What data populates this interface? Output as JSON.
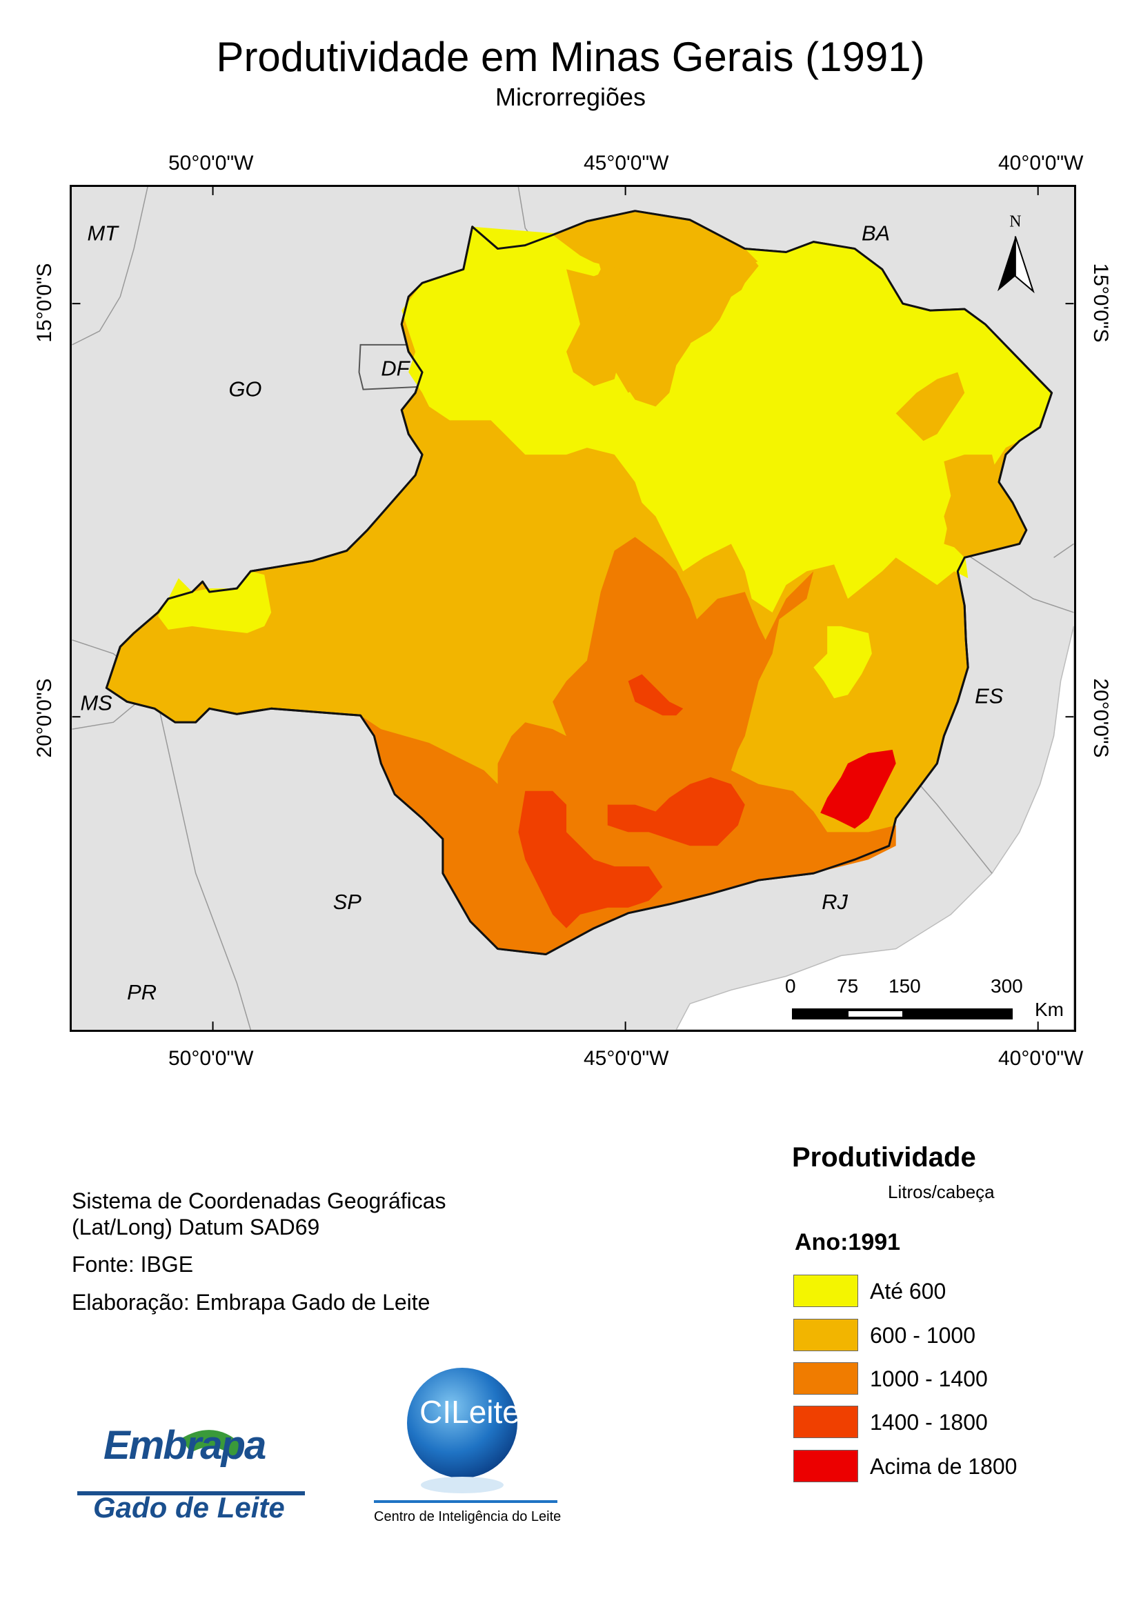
{
  "header": {
    "title": "Produtividade em Minas Gerais (1991)",
    "subtitle": "Microrregiões"
  },
  "graticule": {
    "lon_labels": [
      "50°0'0\"W",
      "45°0'0\"W",
      "40°0'0\"W"
    ],
    "lat_labels": [
      "15°0'0\"S",
      "20°0'0\"S"
    ]
  },
  "map": {
    "states": [
      "MT",
      "BA",
      "GO",
      "DF",
      "MS",
      "ES",
      "SP",
      "RJ",
      "PR"
    ],
    "north_label": "N"
  },
  "scalebar": {
    "ticks": [
      "0",
      "75",
      "150",
      "300"
    ],
    "unit": "Km"
  },
  "info": {
    "crs_line1": "Sistema de Coordenadas Geográficas",
    "crs_line2": "(Lat/Long) Datum SAD69",
    "source": "Fonte: IBGE",
    "author": "Elaboração: Embrapa Gado de Leite"
  },
  "legend": {
    "title": "Produtividade",
    "unit": "Litros/cabeça",
    "year": "Ano:1991",
    "classes": [
      {
        "label": "Até 600",
        "color": "#f4f500"
      },
      {
        "label": "600 - 1000",
        "color": "#f2b500"
      },
      {
        "label": "1000 - 1400",
        "color": "#f07c00"
      },
      {
        "label": "1400 - 1800",
        "color": "#f04000"
      },
      {
        "label": "Acima de 1800",
        "color": "#ec0000"
      }
    ]
  },
  "logos": {
    "embrapa_name": "Embrapa",
    "embrapa_sub": "Gado de Leite",
    "cileite_name": "CILeite",
    "cileite_sub": "Centro de Inteligência do Leite"
  }
}
